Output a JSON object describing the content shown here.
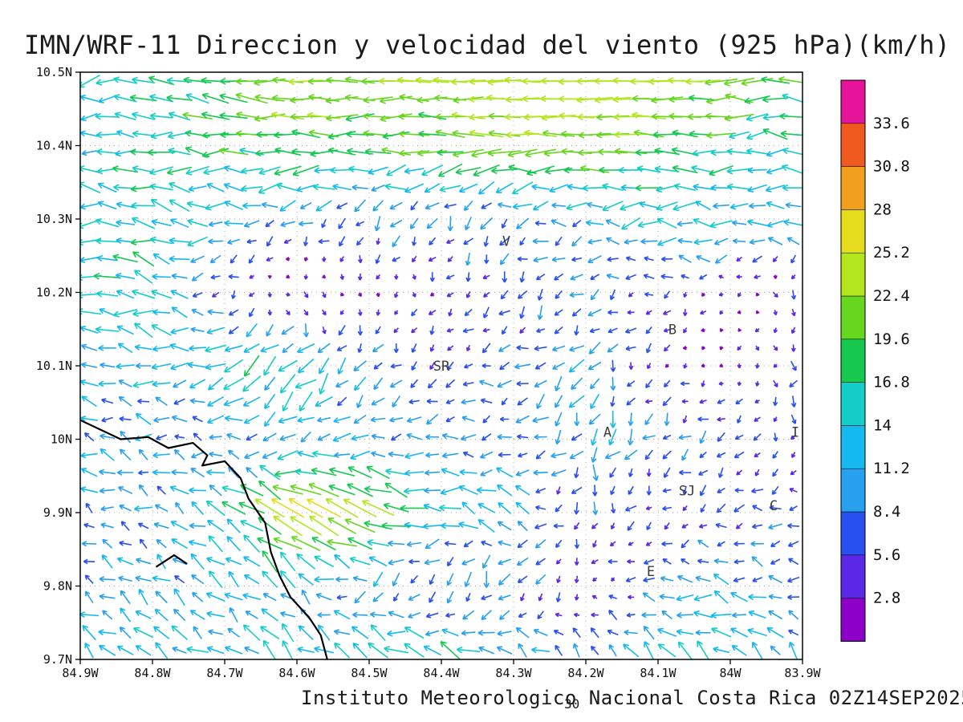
{
  "title": "IMN/WRF-11 Direccion y velocidad del viento (925 hPa)(km/h)",
  "footer": "Instituto Meteorologico Nacional Costa Rica 02Z14SEP2025",
  "reference_vector_label": "30",
  "chart_data": {
    "type": "vector",
    "description": "Wind direction and speed vector field at 925 hPa over Costa Rica, arrows colored by speed in km/h",
    "grid": true,
    "x_axis": {
      "tick_values": [
        84.9,
        84.8,
        84.7,
        84.6,
        84.5,
        84.4,
        84.3,
        84.2,
        84.1,
        84.0,
        83.9
      ],
      "tick_labels": [
        "84.9W",
        "84.8W",
        "84.7W",
        "84.6W",
        "84.5W",
        "84.4W",
        "84.3W",
        "84.2W",
        "84.1W",
        "84W",
        "83.9W"
      ]
    },
    "y_axis": {
      "tick_values": [
        10.5,
        10.4,
        10.3,
        10.2,
        10.1,
        10.0,
        9.9,
        9.8,
        9.7
      ],
      "tick_labels": [
        "10.5N",
        "10.4N",
        "10.3N",
        "10.2N",
        "10.1N",
        "10N",
        "9.9N",
        "9.8N",
        "9.7N"
      ]
    },
    "colorbar": {
      "unit": "km/h",
      "boundaries": [
        2.8,
        5.6,
        8.4,
        11.2,
        14,
        16.8,
        19.6,
        22.4,
        25.2,
        28,
        30.8,
        33.6
      ],
      "boundary_labels": [
        "2.8",
        "5.6",
        "8.4",
        "11.2",
        "14",
        "16.8",
        "19.6",
        "22.4",
        "25.2",
        "28",
        "30.8",
        "33.6"
      ],
      "colors_low_to_high": [
        "#8c00c8",
        "#5a28e6",
        "#2850f0",
        "#28a0f0",
        "#14b9f0",
        "#14cdc8",
        "#14c850",
        "#66d61e",
        "#b4e61e",
        "#e6dc1e",
        "#f0a01e",
        "#f05a1e",
        "#e6149b"
      ]
    },
    "stations": [
      {
        "name": "V",
        "lon": 84.31,
        "lat": 10.27
      },
      {
        "name": "B",
        "lon": 84.08,
        "lat": 10.15
      },
      {
        "name": "SR",
        "lon": 84.4,
        "lat": 10.1
      },
      {
        "name": "A",
        "lon": 84.17,
        "lat": 10.01
      },
      {
        "name": "SJ",
        "lon": 84.06,
        "lat": 9.93
      },
      {
        "name": "C",
        "lon": 83.94,
        "lat": 9.91
      },
      {
        "name": "E",
        "lon": 84.11,
        "lat": 9.82
      },
      {
        "name": "I",
        "lon": 83.91,
        "lat": 10.01
      }
    ],
    "coastlines": [
      [
        [
          84.9,
          10.026
        ],
        [
          84.844,
          10.0
        ],
        [
          84.806,
          10.003
        ],
        [
          84.778,
          9.988
        ],
        [
          84.744,
          9.995
        ],
        [
          84.724,
          9.978
        ],
        [
          84.731,
          9.964
        ],
        [
          84.7,
          9.97
        ],
        [
          84.678,
          9.947
        ],
        [
          84.667,
          9.919
        ],
        [
          84.644,
          9.886
        ],
        [
          84.636,
          9.846
        ],
        [
          84.624,
          9.814
        ],
        [
          84.609,
          9.785
        ],
        [
          84.583,
          9.757
        ],
        [
          84.567,
          9.733
        ],
        [
          84.558,
          9.7
        ]
      ],
      [
        [
          84.795,
          9.826
        ],
        [
          84.77,
          9.842
        ],
        [
          84.752,
          9.83
        ]
      ]
    ],
    "wind_field": {
      "units": "km/h",
      "lon": [
        84.9,
        84.8,
        84.7,
        84.6,
        84.5,
        84.4,
        84.3,
        84.2,
        84.1,
        84.0,
        83.9
      ],
      "lat": [
        10.5,
        10.4,
        10.3,
        10.2,
        10.1,
        10.0,
        9.9,
        9.8,
        9.7
      ],
      "u_kmh": [
        [
          -15,
          -18,
          -20,
          -22,
          -22,
          -22,
          -24,
          -25,
          -25,
          -22,
          -18
        ],
        [
          -12,
          -16,
          -18,
          -20,
          -20,
          -20,
          -22,
          -22,
          -20,
          -16,
          -14
        ],
        [
          -14,
          -15,
          -12,
          -8,
          -6,
          -5,
          -8,
          -10,
          -14,
          -13,
          -12
        ],
        [
          -16,
          -14,
          -5,
          4,
          2,
          -2,
          -4,
          -6,
          -4,
          -2,
          3
        ],
        [
          -10,
          -12,
          -13,
          -10,
          -6,
          -4,
          -8,
          -6,
          -3,
          -2,
          0
        ],
        [
          -10,
          -9,
          -8,
          -10,
          -10,
          -10,
          -8,
          -5,
          -6,
          -5,
          -2
        ],
        [
          -8,
          -9,
          -12,
          -24,
          -22,
          -12,
          -13,
          -2,
          -3,
          -6,
          -8
        ],
        [
          -8,
          -8,
          -9,
          -10,
          -7,
          -5,
          -3,
          -2,
          -8,
          -10,
          -8
        ],
        [
          -9,
          -10,
          -10,
          -11,
          -14,
          -15,
          -12,
          -8,
          -10,
          -11,
          -8
        ]
      ],
      "v_kmh": [
        [
          -2,
          0,
          3,
          0,
          0,
          0,
          0,
          0,
          0,
          0,
          2
        ],
        [
          2,
          2,
          0,
          0,
          0,
          0,
          0,
          0,
          0,
          0,
          0
        ],
        [
          0,
          2,
          0,
          -4,
          -6,
          -8,
          -4,
          0,
          0,
          2,
          2
        ],
        [
          3,
          4,
          -3,
          -2,
          -3,
          -4,
          -6,
          -4,
          -3,
          -2,
          -5
        ],
        [
          0,
          2,
          -6,
          -12,
          -6,
          -4,
          -2,
          -10,
          -3,
          -2,
          -6
        ],
        [
          4,
          2,
          0,
          -6,
          -3,
          -2,
          -3,
          -9,
          -6,
          -4,
          -6
        ],
        [
          4,
          4,
          8,
          14,
          12,
          3,
          6,
          -8,
          -4,
          -2,
          0
        ],
        [
          6,
          6,
          7,
          8,
          -5,
          -8,
          -9,
          -3,
          2,
          2,
          2
        ],
        [
          7,
          8,
          8,
          8,
          9,
          9,
          8,
          6,
          7,
          7,
          6
        ]
      ]
    }
  }
}
